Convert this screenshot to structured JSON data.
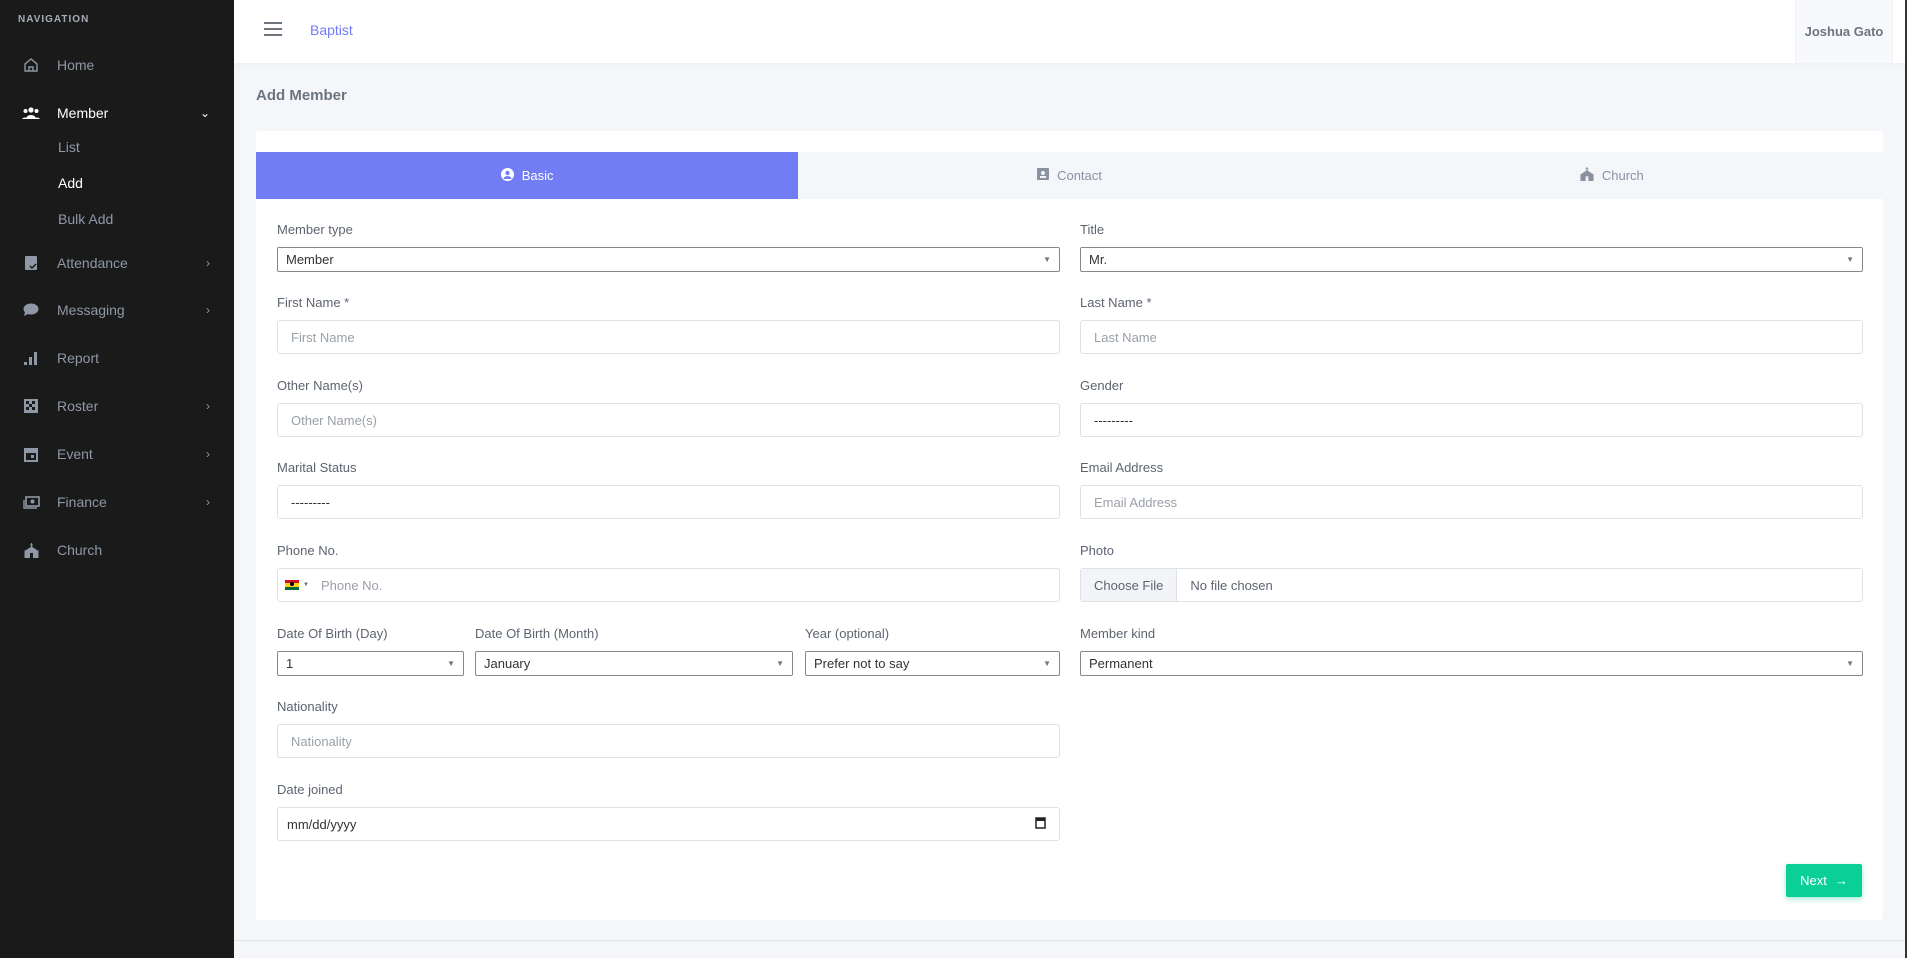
{
  "sidebar": {
    "heading": "NAVIGATION",
    "items": [
      {
        "label": "Home",
        "icon": "home-icon"
      },
      {
        "label": "Member",
        "icon": "users-icon",
        "expanded": true,
        "children": [
          "List",
          "Add",
          "Bulk Add"
        ],
        "active_child": "Add"
      },
      {
        "label": "Attendance",
        "icon": "attendance-icon"
      },
      {
        "label": "Messaging",
        "icon": "chat-icon"
      },
      {
        "label": "Report",
        "icon": "bar-chart-icon"
      },
      {
        "label": "Roster",
        "icon": "checkerboard-icon"
      },
      {
        "label": "Event",
        "icon": "calendar-icon"
      },
      {
        "label": "Finance",
        "icon": "money-icon"
      },
      {
        "label": "Church",
        "icon": "church-icon"
      }
    ]
  },
  "topbar": {
    "brand": "Baptist",
    "user": "Joshua Gato"
  },
  "page": {
    "title": "Add Member"
  },
  "tabs": [
    {
      "label": "Basic",
      "active": true
    },
    {
      "label": "Contact"
    },
    {
      "label": "Church"
    }
  ],
  "form": {
    "member_type": {
      "label": "Member type",
      "value": "Member"
    },
    "title": {
      "label": "Title",
      "value": "Mr."
    },
    "first_name": {
      "label": "First Name *",
      "placeholder": "First Name"
    },
    "last_name": {
      "label": "Last Name *",
      "placeholder": "Last Name"
    },
    "other_names": {
      "label": "Other Name(s)",
      "placeholder": "Other Name(s)"
    },
    "gender": {
      "label": "Gender",
      "value": "---------"
    },
    "marital_status": {
      "label": "Marital Status",
      "value": "---------"
    },
    "email": {
      "label": "Email Address",
      "placeholder": "Email Address"
    },
    "phone": {
      "label": "Phone No.",
      "placeholder": "Phone No.",
      "country": "Ghana"
    },
    "photo": {
      "label": "Photo",
      "button": "Choose File",
      "status": "No file chosen"
    },
    "dob_day": {
      "label": "Date Of Birth (Day)",
      "value": "1"
    },
    "dob_month": {
      "label": "Date Of Birth (Month)",
      "value": "January"
    },
    "dob_year": {
      "label": "Year (optional)",
      "value": "Prefer not to say"
    },
    "member_kind": {
      "label": "Member kind",
      "value": "Permanent"
    },
    "nationality": {
      "label": "Nationality",
      "placeholder": "Nationality"
    },
    "date_joined": {
      "label": "Date joined",
      "placeholder": "mm/dd/yyyy"
    }
  },
  "actions": {
    "next": "Next"
  },
  "colors": {
    "accent": "#727cf5",
    "success": "#0acf97",
    "sidebar": "#1a1a1b"
  }
}
